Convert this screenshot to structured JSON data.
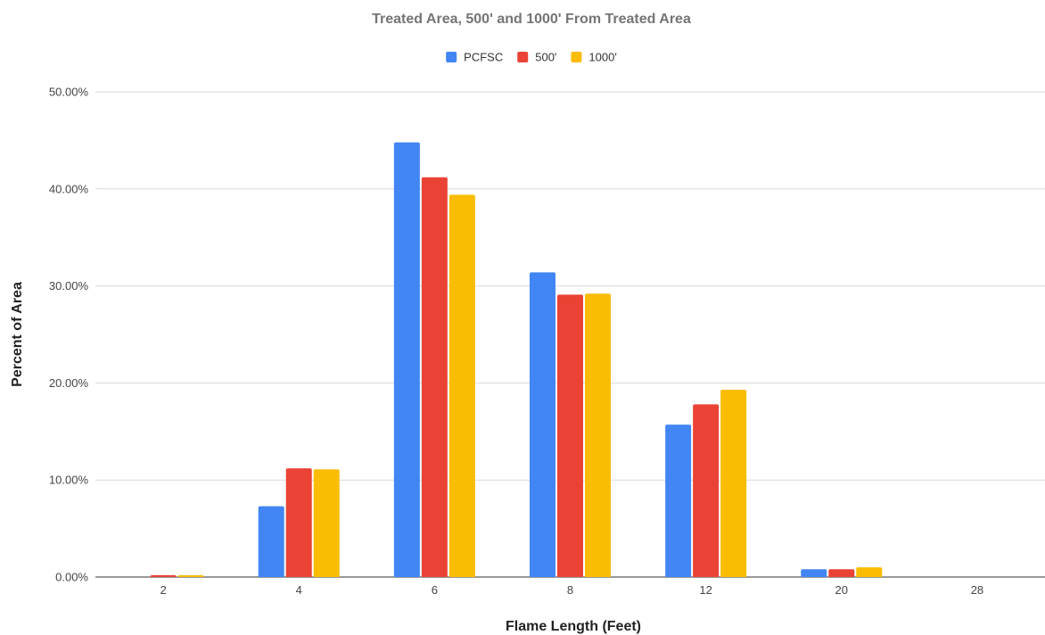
{
  "chart_data": {
    "type": "bar",
    "title": "Treated Area, 500' and 1000' From Treated Area",
    "xlabel": "Flame Length (Feet)",
    "ylabel": "Percent of Area",
    "categories": [
      "2",
      "4",
      "6",
      "8",
      "12",
      "20",
      "28"
    ],
    "ylim": [
      0,
      50
    ],
    "yticks": [
      "0.00%",
      "10.00%",
      "20.00%",
      "30.00%",
      "40.00%",
      "50.00%"
    ],
    "grid": true,
    "legend_position": "top",
    "series": [
      {
        "name": "PCFSC",
        "color": "#4285F4",
        "values": [
          0.0,
          7.3,
          44.8,
          31.4,
          15.7,
          0.8,
          0.0
        ]
      },
      {
        "name": "500'",
        "color": "#EA4335",
        "values": [
          0.2,
          11.2,
          41.2,
          29.1,
          17.8,
          0.8,
          0.0
        ]
      },
      {
        "name": "1000'",
        "color": "#FBBC04",
        "values": [
          0.2,
          11.1,
          39.4,
          29.2,
          19.3,
          1.0,
          0.0
        ]
      }
    ]
  }
}
